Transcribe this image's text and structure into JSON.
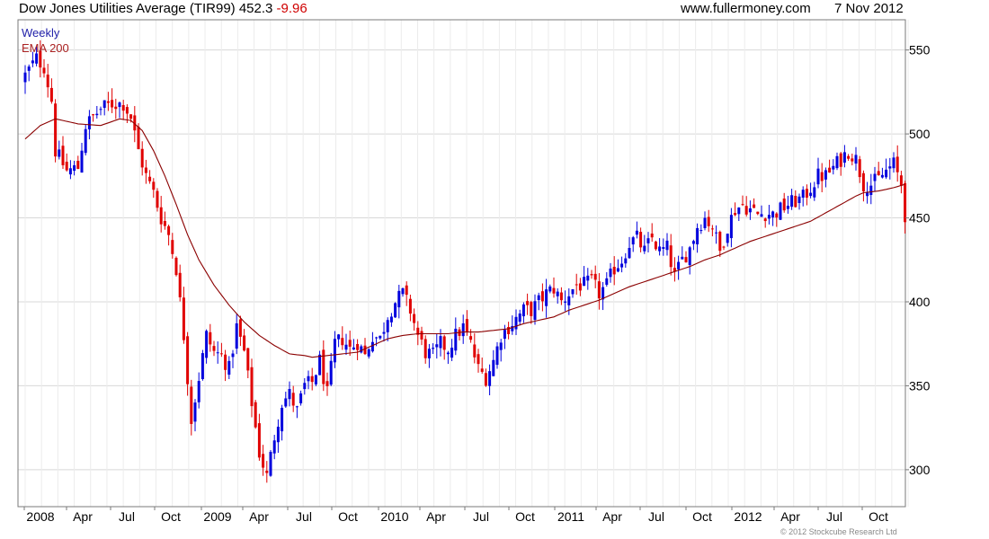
{
  "header": {
    "title": "Dow Jones Utilities Average (TIR99) 452.3",
    "change": "-9.96",
    "source": "www.fullermoney.com",
    "date": "7 Nov 2012"
  },
  "copyright": "© 2012 Stockcube Research Ltd",
  "colors": {
    "up": "#0000dd",
    "down": "#e00000",
    "ema": "#8b0000",
    "grid": "#d8d8d8"
  },
  "chart_data": {
    "type": "candlestick",
    "frequency": "weekly",
    "legend": [
      {
        "label": "Weekly",
        "color": "#2222aa"
      },
      {
        "label": "EMA 200",
        "color": "#aa2222"
      }
    ],
    "ylim": [
      278,
      568
    ],
    "yticks": [
      300,
      350,
      400,
      450,
      500,
      550
    ],
    "xtick_labels": [
      "2008",
      "Apr",
      "Jul",
      "Oct",
      "2009",
      "Apr",
      "Jul",
      "Oct",
      "2010",
      "Apr",
      "Jul",
      "Oct",
      "2011",
      "Apr",
      "Jul",
      "Oct",
      "2012",
      "Apr",
      "Jul",
      "Oct"
    ],
    "close_anchors": [
      [
        0,
        535
      ],
      [
        3,
        545
      ],
      [
        5,
        540
      ],
      [
        7,
        520
      ],
      [
        8,
        490
      ],
      [
        11,
        478
      ],
      [
        14,
        480
      ],
      [
        16,
        505
      ],
      [
        20,
        515
      ],
      [
        23,
        518
      ],
      [
        26,
        518
      ],
      [
        28,
        510
      ],
      [
        30,
        490
      ],
      [
        32,
        475
      ],
      [
        34,
        465
      ],
      [
        36,
        450
      ],
      [
        38,
        440
      ],
      [
        40,
        420
      ],
      [
        42,
        380
      ],
      [
        44,
        330
      ],
      [
        46,
        355
      ],
      [
        48,
        380
      ],
      [
        50,
        370
      ],
      [
        52,
        368
      ],
      [
        54,
        360
      ],
      [
        56,
        385
      ],
      [
        58,
        370
      ],
      [
        60,
        340
      ],
      [
        62,
        310
      ],
      [
        64,
        296
      ],
      [
        66,
        320
      ],
      [
        68,
        340
      ],
      [
        70,
        345
      ],
      [
        72,
        335
      ],
      [
        74,
        350
      ],
      [
        76,
        352
      ],
      [
        78,
        365
      ],
      [
        80,
        345
      ],
      [
        82,
        375
      ],
      [
        84,
        378
      ],
      [
        86,
        372
      ],
      [
        88,
        376
      ],
      [
        90,
        368
      ],
      [
        92,
        380
      ],
      [
        94,
        378
      ],
      [
        96,
        392
      ],
      [
        98,
        400
      ],
      [
        100,
        405
      ],
      [
        102,
        395
      ],
      [
        104,
        380
      ],
      [
        106,
        370
      ],
      [
        108,
        368
      ],
      [
        110,
        375
      ],
      [
        112,
        372
      ],
      [
        114,
        380
      ],
      [
        116,
        385
      ],
      [
        118,
        375
      ],
      [
        120,
        360
      ],
      [
        122,
        355
      ],
      [
        124,
        365
      ],
      [
        126,
        380
      ],
      [
        128,
        385
      ],
      [
        130,
        390
      ],
      [
        132,
        395
      ],
      [
        134,
        395
      ],
      [
        136,
        400
      ],
      [
        138,
        405
      ],
      [
        140,
        408
      ],
      [
        142,
        400
      ],
      [
        144,
        405
      ],
      [
        146,
        410
      ],
      [
        148,
        410
      ],
      [
        150,
        412
      ],
      [
        152,
        405
      ],
      [
        154,
        410
      ],
      [
        156,
        420
      ],
      [
        158,
        425
      ],
      [
        160,
        435
      ],
      [
        162,
        438
      ],
      [
        164,
        430
      ],
      [
        166,
        438
      ],
      [
        168,
        430
      ],
      [
        170,
        432
      ],
      [
        172,
        415
      ],
      [
        174,
        425
      ],
      [
        176,
        432
      ],
      [
        178,
        445
      ],
      [
        180,
        450
      ],
      [
        182,
        445
      ],
      [
        184,
        430
      ],
      [
        186,
        445
      ],
      [
        188,
        455
      ],
      [
        190,
        458
      ],
      [
        192,
        455
      ],
      [
        194,
        452
      ],
      [
        196,
        453
      ],
      [
        198,
        452
      ],
      [
        200,
        455
      ],
      [
        202,
        458
      ],
      [
        204,
        460
      ],
      [
        206,
        462
      ],
      [
        208,
        468
      ],
      [
        210,
        475
      ],
      [
        212,
        475
      ],
      [
        214,
        480
      ],
      [
        216,
        485
      ],
      [
        218,
        490
      ],
      [
        220,
        485
      ],
      [
        222,
        470
      ],
      [
        224,
        470
      ],
      [
        226,
        473
      ],
      [
        228,
        478
      ],
      [
        230,
        482
      ],
      [
        232,
        470
      ],
      [
        233,
        452
      ]
    ],
    "ema_anchors": [
      [
        0,
        497
      ],
      [
        4,
        505
      ],
      [
        8,
        509
      ],
      [
        14,
        506
      ],
      [
        20,
        505
      ],
      [
        25,
        509
      ],
      [
        28,
        508
      ],
      [
        31,
        502
      ],
      [
        34,
        490
      ],
      [
        37,
        475
      ],
      [
        40,
        458
      ],
      [
        43,
        440
      ],
      [
        46,
        425
      ],
      [
        50,
        410
      ],
      [
        54,
        398
      ],
      [
        58,
        388
      ],
      [
        62,
        380
      ],
      [
        66,
        374
      ],
      [
        70,
        369
      ],
      [
        74,
        368
      ],
      [
        76,
        367
      ],
      [
        80,
        368
      ],
      [
        84,
        369
      ],
      [
        88,
        370
      ],
      [
        92,
        374
      ],
      [
        96,
        378
      ],
      [
        100,
        380
      ],
      [
        104,
        381
      ],
      [
        108,
        381
      ],
      [
        112,
        381
      ],
      [
        116,
        382
      ],
      [
        120,
        382
      ],
      [
        124,
        383
      ],
      [
        128,
        384
      ],
      [
        132,
        387
      ],
      [
        136,
        389
      ],
      [
        140,
        391
      ],
      [
        144,
        395
      ],
      [
        148,
        398
      ],
      [
        152,
        401
      ],
      [
        156,
        405
      ],
      [
        160,
        409
      ],
      [
        164,
        412
      ],
      [
        168,
        415
      ],
      [
        172,
        418
      ],
      [
        176,
        421
      ],
      [
        180,
        425
      ],
      [
        184,
        428
      ],
      [
        188,
        432
      ],
      [
        192,
        436
      ],
      [
        196,
        439
      ],
      [
        200,
        442
      ],
      [
        204,
        445
      ],
      [
        208,
        448
      ],
      [
        212,
        453
      ],
      [
        216,
        458
      ],
      [
        220,
        463
      ],
      [
        222,
        465
      ],
      [
        226,
        466
      ],
      [
        230,
        468
      ],
      [
        233,
        470
      ]
    ]
  }
}
